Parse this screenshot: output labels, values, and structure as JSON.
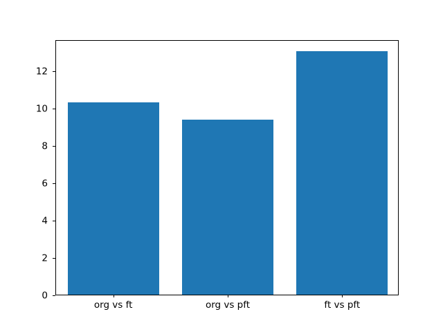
{
  "figure": {
    "background": "#ffffff"
  },
  "chart_data": {
    "type": "bar",
    "categories": [
      "org vs ft",
      "org vs pft",
      "ft vs pft"
    ],
    "values": [
      10.28,
      9.35,
      13.04
    ],
    "title": "",
    "xlabel": "",
    "ylabel": "",
    "ylim": [
      0,
      13.65
    ],
    "yticks": [
      0,
      2,
      4,
      6,
      8,
      10,
      12
    ],
    "bar_color": "#1f77b4",
    "bar_width_fraction": 0.8,
    "grid": false,
    "legend": null
  }
}
